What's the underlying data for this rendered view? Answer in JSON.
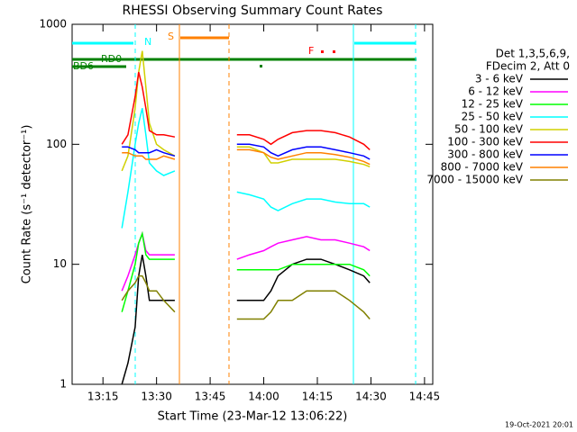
{
  "chart_data": {
    "type": "line",
    "title": "RHESSI Observing Summary Count Rates",
    "xlabel": "Start Time (23-Mar-12 13:06:22)",
    "ylabel": "Count Rate (s⁻¹ detector⁻¹)",
    "footer": "19-Oct-2021 20:01",
    "legend_header": [
      "Det 1,3,5,6,9,",
      "FDecim 2, Att 0"
    ],
    "flags": [
      "N",
      "S",
      "F",
      "RD0",
      "BD6"
    ],
    "log_y": true,
    "xlim": [
      6.37,
      107.3
    ],
    "ylim": [
      1,
      1000
    ],
    "xticks": [
      {
        "value": 15,
        "label": "13:15"
      },
      {
        "value": 30,
        "label": "13:30"
      },
      {
        "value": 45,
        "label": "13:45"
      },
      {
        "value": 60,
        "label": "14:00"
      },
      {
        "value": 75,
        "label": "14:15"
      },
      {
        "value": 90,
        "label": "14:30"
      },
      {
        "value": 105,
        "label": "14:45"
      }
    ],
    "yticks": [
      1,
      10,
      100,
      1000
    ],
    "x": [
      20.3,
      22,
      24,
      25,
      26,
      27,
      28,
      30,
      32,
      35.1,
      44,
      52.5,
      56,
      60,
      62,
      64,
      68,
      72,
      76,
      80,
      84,
      88,
      89.7
    ],
    "series": [
      {
        "name": "3 - 6 keV",
        "color": "#000000",
        "values": [
          1,
          1.5,
          3,
          8,
          12,
          8,
          5,
          5,
          5,
          5,
          null,
          5,
          5,
          5,
          6,
          8,
          10,
          11,
          11,
          10,
          9,
          8,
          7
        ]
      },
      {
        "name": "6 - 12 keV",
        "color": "#ff00ff",
        "values": [
          6,
          8,
          12,
          15,
          18,
          13,
          12,
          12,
          12,
          12,
          null,
          11,
          12,
          13,
          14,
          15,
          16,
          17,
          16,
          16,
          15,
          14,
          13
        ]
      },
      {
        "name": "12 - 25 keV",
        "color": "#00ff00",
        "values": [
          4,
          6,
          10,
          15,
          18,
          12,
          11,
          11,
          11,
          11,
          null,
          9,
          9,
          9,
          9,
          9,
          10,
          10,
          10,
          10,
          10,
          9,
          8
        ]
      },
      {
        "name": "25 - 50 keV",
        "color": "#00ffff",
        "values": [
          20,
          40,
          100,
          150,
          200,
          120,
          70,
          60,
          55,
          60,
          null,
          40,
          38,
          35,
          30,
          28,
          32,
          35,
          35,
          33,
          32,
          32,
          30
        ]
      },
      {
        "name": "50 - 100 keV",
        "color": "#d0d000",
        "values": [
          60,
          80,
          200,
          400,
          600,
          300,
          150,
          100,
          90,
          80,
          null,
          95,
          95,
          85,
          70,
          70,
          75,
          75,
          75,
          75,
          72,
          68,
          65
        ]
      },
      {
        "name": "100 - 300 keV",
        "color": "#ff0000",
        "values": [
          100,
          120,
          250,
          400,
          300,
          200,
          130,
          120,
          120,
          115,
          null,
          120,
          120,
          110,
          100,
          110,
          125,
          130,
          130,
          125,
          115,
          100,
          90
        ]
      },
      {
        "name": "300 - 800 keV",
        "color": "#0000ff",
        "values": [
          95,
          95,
          90,
          85,
          85,
          85,
          85,
          90,
          85,
          80,
          null,
          100,
          100,
          95,
          85,
          80,
          90,
          95,
          95,
          90,
          85,
          80,
          75
        ]
      },
      {
        "name": "800 - 7000 keV",
        "color": "#ff8000",
        "values": [
          85,
          85,
          80,
          80,
          80,
          75,
          75,
          75,
          80,
          75,
          null,
          90,
          90,
          85,
          78,
          75,
          80,
          85,
          85,
          82,
          78,
          72,
          68
        ]
      },
      {
        "name": "7000 - 15000 keV",
        "color": "#808000",
        "values": [
          5,
          6,
          7,
          8,
          8,
          7,
          6,
          6,
          5,
          4,
          null,
          3.5,
          3.5,
          3.5,
          4,
          5,
          5,
          6,
          6,
          6,
          5,
          4,
          3.5
        ]
      }
    ]
  }
}
